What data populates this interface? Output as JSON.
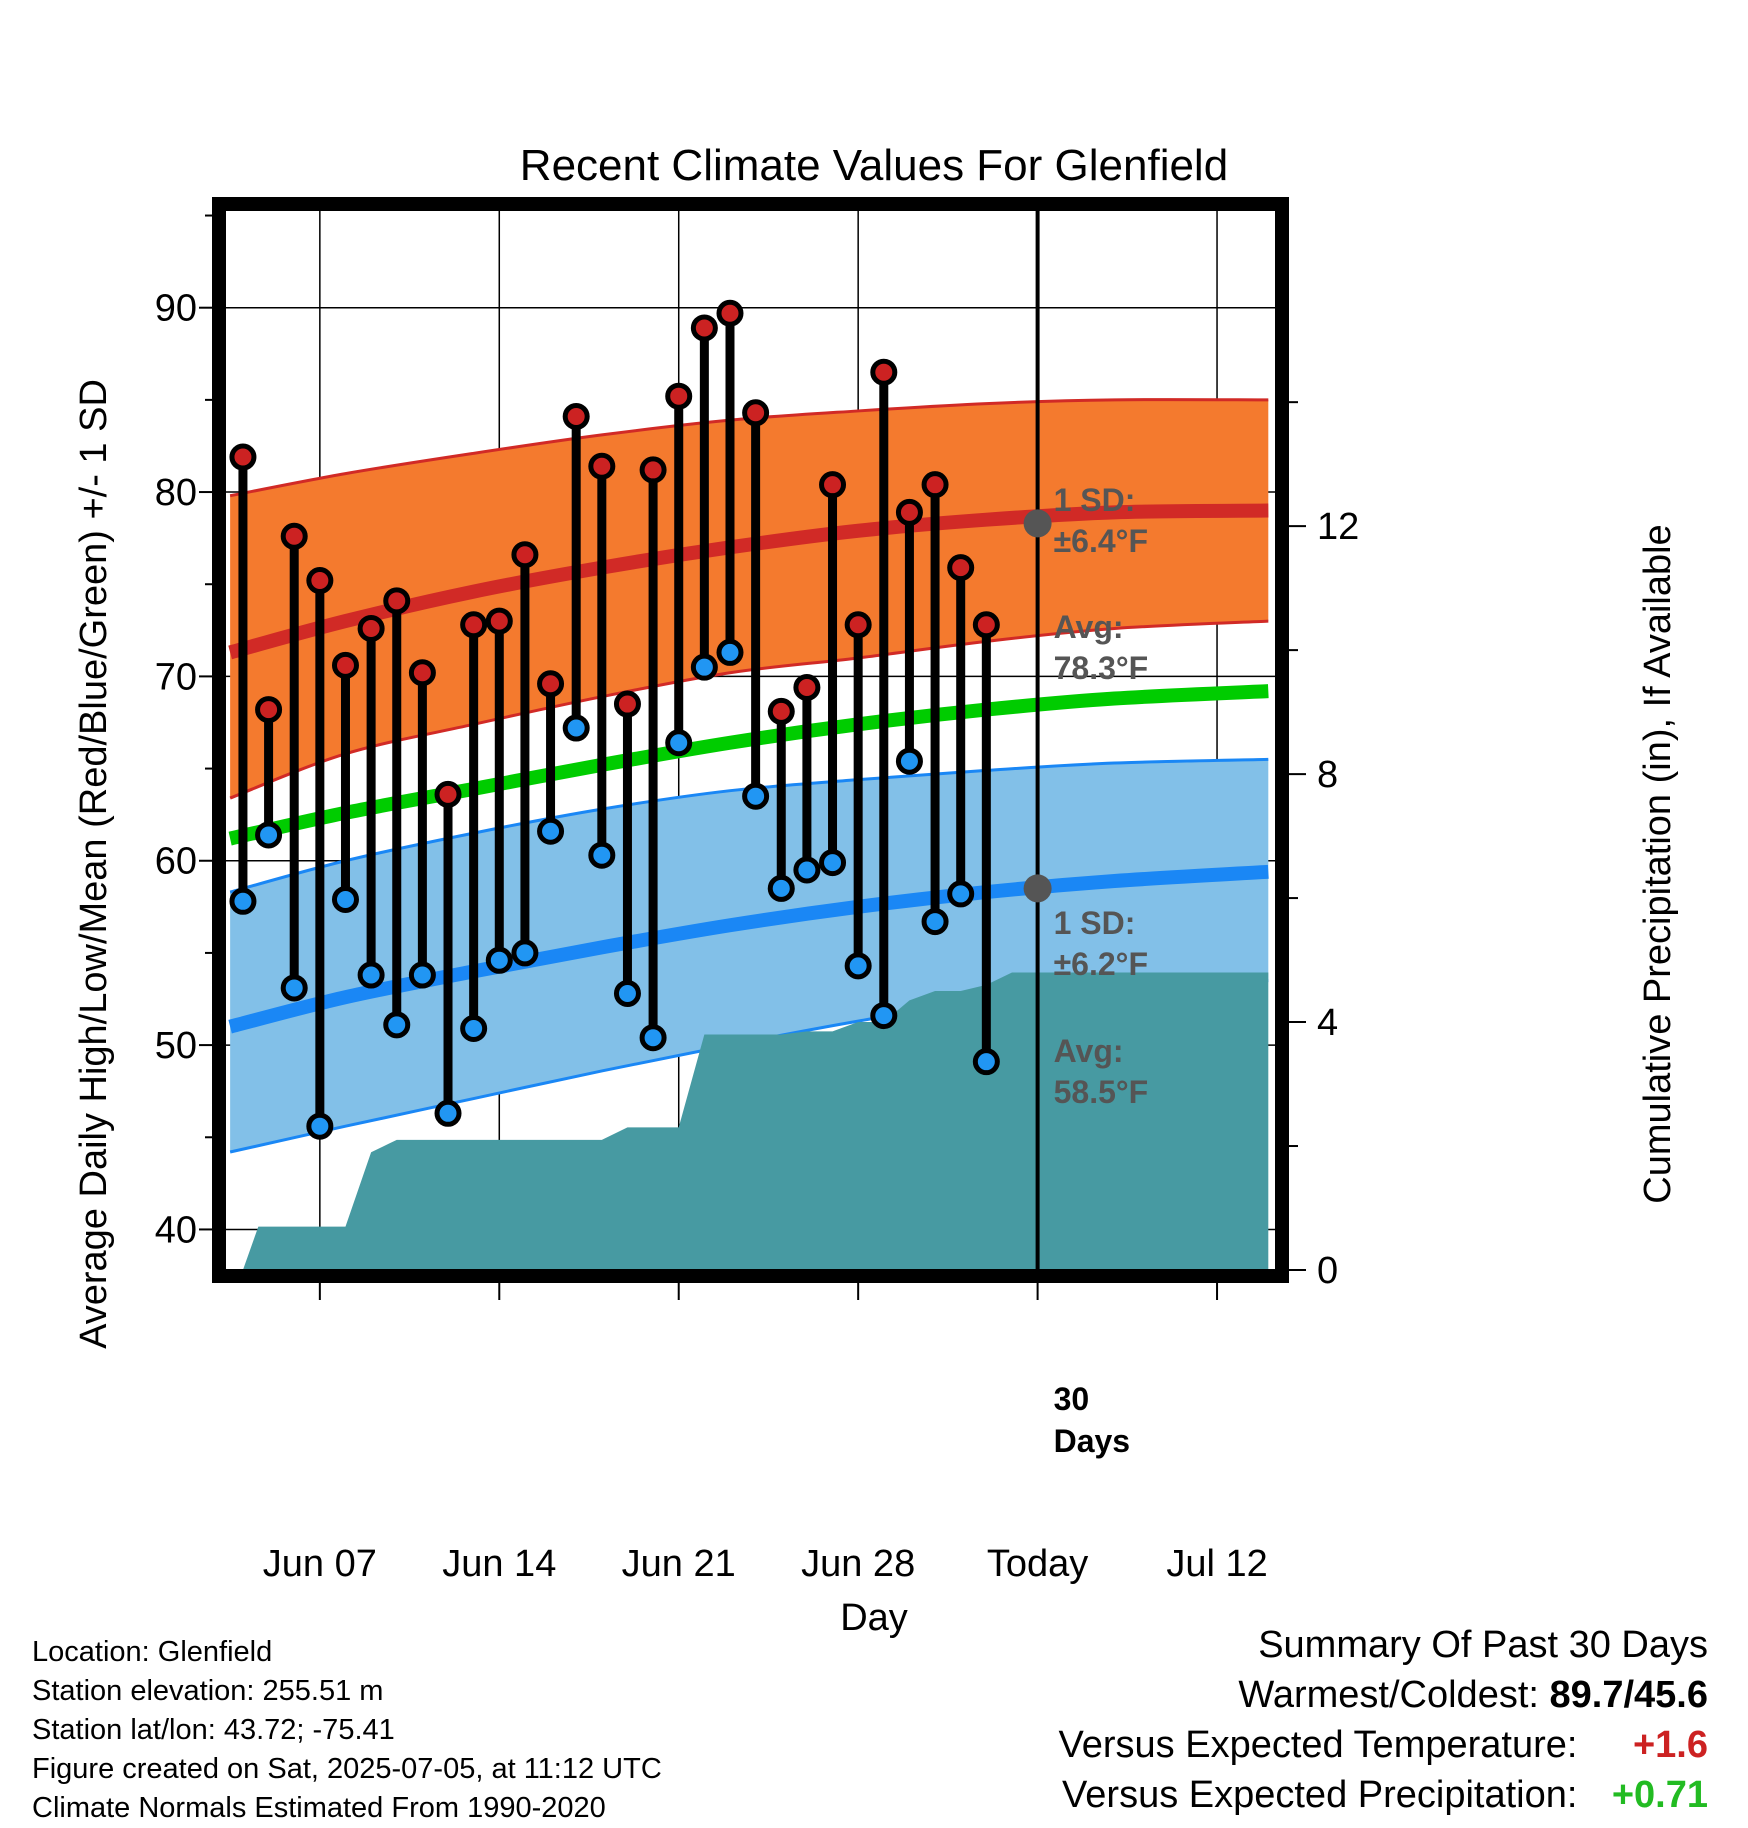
{
  "chart_data": {
    "type": "line",
    "title": "Recent Climate Values For Glenfield",
    "xlabel": "Day",
    "ylabel_left": "Average Daily High/Low/Mean (Red/Blue/Green) +/- 1 SD",
    "ylabel_right": "Cumulative Precipitation (in), If Available",
    "ylim_left": [
      37.8,
      95.3
    ],
    "ylim_right": [
      0,
      17.1
    ],
    "y_ticks_left": [
      40,
      50,
      60,
      70,
      80,
      90
    ],
    "y_ticks_right": [
      0,
      4,
      8,
      12
    ],
    "xlim": [
      3.3,
      44.3
    ],
    "x_ticks": [
      {
        "day": 7,
        "label": "Jun 07"
      },
      {
        "day": 14,
        "label": "Jun 14"
      },
      {
        "day": 21,
        "label": "Jun 21"
      },
      {
        "day": 28,
        "label": "Jun 28"
      },
      {
        "day": 35,
        "label": "Today"
      },
      {
        "day": 42,
        "label": "Jul 12"
      }
    ],
    "grid": true,
    "today_day": 35,
    "days": [
      4,
      5,
      6,
      7,
      8,
      9,
      10,
      11,
      12,
      13,
      14,
      15,
      16,
      17,
      18,
      19,
      20,
      21,
      22,
      23,
      24,
      25,
      26,
      27,
      28,
      29,
      30,
      31,
      32,
      33,
      34
    ],
    "highs": [
      81.9,
      68.2,
      77.6,
      75.2,
      70.6,
      72.6,
      74.1,
      70.2,
      63.6,
      72.8,
      73.0,
      76.6,
      69.6,
      84.1,
      81.4,
      68.5,
      81.2,
      85.2,
      88.9,
      89.7,
      84.3,
      68.1,
      69.4,
      80.4,
      72.8,
      86.5,
      78.9,
      80.4,
      75.9,
      72.8,
      null
    ],
    "lows": [
      57.8,
      61.4,
      53.1,
      45.6,
      57.9,
      53.8,
      51.1,
      53.8,
      46.3,
      50.9,
      54.6,
      55.0,
      61.6,
      67.2,
      60.3,
      52.8,
      50.4,
      66.4,
      70.5,
      71.3,
      63.5,
      58.5,
      59.5,
      59.9,
      54.3,
      51.6,
      65.4,
      56.7,
      58.2,
      49.1,
      null
    ],
    "normal_high": {
      "days": [
        3.5,
        8,
        13,
        18,
        23,
        28,
        33,
        38,
        44
      ],
      "mean": [
        71.3,
        73.0,
        74.6,
        75.9,
        77.0,
        77.9,
        78.5,
        78.9,
        79.0
      ],
      "upper": [
        79.8,
        81.0,
        82.1,
        83.1,
        83.9,
        84.4,
        84.8,
        85.0,
        85.0
      ],
      "lower": [
        63.4,
        65.8,
        67.4,
        68.9,
        70.2,
        71.0,
        71.9,
        72.6,
        73.0
      ]
    },
    "normal_mean": {
      "days": [
        3.5,
        8,
        13,
        18,
        23,
        28,
        33,
        38,
        44
      ],
      "values": [
        61.2,
        62.6,
        63.9,
        65.2,
        66.4,
        67.4,
        68.2,
        68.8,
        69.2
      ]
    },
    "normal_low": {
      "days": [
        3.5,
        8,
        13,
        18,
        23,
        28,
        33,
        38,
        44
      ],
      "mean": [
        51.0,
        52.6,
        54.0,
        55.3,
        56.5,
        57.5,
        58.3,
        58.9,
        59.4
      ],
      "upper": [
        58.3,
        60.0,
        61.5,
        62.8,
        63.8,
        64.4,
        64.9,
        65.3,
        65.5
      ],
      "lower": [
        44.2,
        45.6,
        47.1,
        48.6,
        50.0,
        51.3,
        52.4,
        53.0,
        53.5
      ]
    },
    "precip": {
      "days": [
        4,
        4.6,
        5,
        6,
        7,
        8,
        9,
        10,
        11,
        12,
        13,
        14,
        15,
        16,
        17,
        18,
        19,
        20,
        21,
        22,
        23,
        24,
        25,
        26,
        27,
        28,
        29,
        30,
        31,
        32,
        33,
        34,
        44
      ],
      "values": [
        0,
        0.7,
        0.7,
        0.7,
        0.7,
        0.7,
        1.9,
        2.1,
        2.1,
        2.1,
        2.1,
        2.1,
        2.1,
        2.1,
        2.1,
        2.1,
        2.3,
        2.3,
        2.3,
        3.8,
        3.8,
        3.8,
        3.8,
        3.85,
        3.85,
        4.0,
        4.0,
        4.35,
        4.5,
        4.5,
        4.6,
        4.8,
        4.8
      ]
    },
    "annotations": {
      "high_sd_line1": "1 SD:",
      "high_sd_line2": "±6.4°F",
      "high_avg_line1": "Avg:",
      "high_avg_line2": "78.3°F",
      "low_sd_line1": "1 SD:",
      "low_sd_line2": "±6.2°F",
      "low_avg_line1": "Avg:",
      "low_avg_line2": "58.5°F",
      "days_line1": "30",
      "days_line2": "Days",
      "high_avg_value": 78.3,
      "low_avg_value": 58.5
    },
    "colors": {
      "high_band": "#f47a2e",
      "high_line": "#d12a26",
      "low_band": "#82c0e8",
      "low_line": "#1a87f5",
      "mean_line": "#00cc00",
      "precip": "#479aa2",
      "high_dot": "#cc2222",
      "low_dot": "#2196f3",
      "annot_text": "#555555",
      "avg_marker": "#555555"
    }
  },
  "footer": {
    "location": "Location: Glenfield",
    "elevation": "Station elevation: 255.51 m",
    "latlon": "Station lat/lon: 43.72; -75.41",
    "created": "Figure created on Sat, 2025-07-05, at 11:12 UTC",
    "normals": "Climate Normals Estimated From 1990-2020"
  },
  "summary": {
    "heading": "Summary Of Past 30 Days",
    "warmest_label": "Warmest/Coldest:",
    "warmest_value": "89.7/45.6",
    "temp_label": "Versus Expected Temperature:",
    "temp_value": "+1.6",
    "temp_color": "#cc2222",
    "precip_label": "Versus Expected Precipitation:",
    "precip_value": "+0.71",
    "precip_color": "#22bb22"
  }
}
